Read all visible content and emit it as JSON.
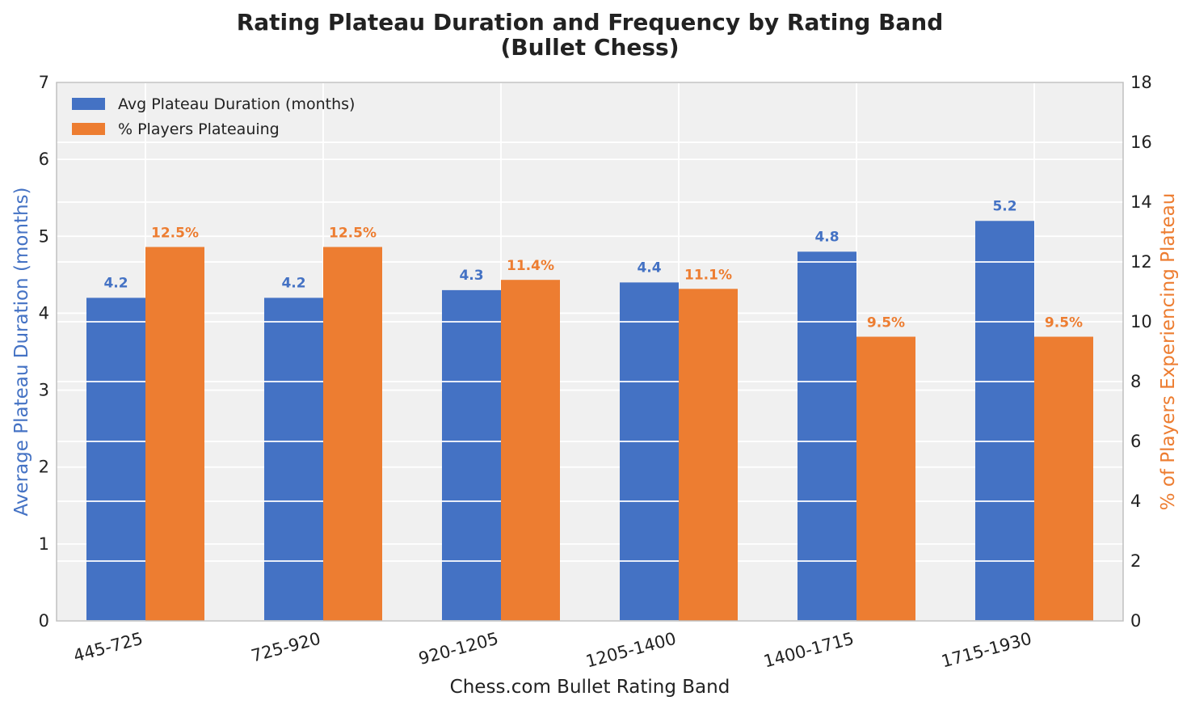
{
  "chart_data": {
    "type": "bar",
    "title_line1": "Rating Plateau Duration and Frequency by Rating Band",
    "title_line2": "(Bullet Chess)",
    "xlabel": "Chess.com Bullet Rating Band",
    "ylabel_left": "Average Plateau Duration (months)",
    "ylabel_right": "% of Players Experiencing Plateau",
    "categories": [
      "445-725",
      "725-920",
      "920-1205",
      "1205-1400",
      "1400-1715",
      "1715-1930"
    ],
    "ylim_left": [
      0,
      7
    ],
    "ylim_right": [
      0,
      18
    ],
    "yticks_left": [
      "0",
      "1",
      "2",
      "3",
      "4",
      "5",
      "6",
      "7"
    ],
    "yticks_right": [
      "0",
      "2",
      "4",
      "6",
      "8",
      "10",
      "12",
      "14",
      "16",
      "18"
    ],
    "grid": true,
    "legend_position": "top-left",
    "series": [
      {
        "name": "Avg Plateau Duration (months)",
        "axis": "left",
        "color": "#4472c4",
        "values": [
          4.2,
          4.2,
          4.3,
          4.4,
          4.8,
          5.2
        ],
        "labels": [
          "4.2",
          "4.2",
          "4.3",
          "4.4",
          "4.8",
          "5.2"
        ]
      },
      {
        "name": "% Players Plateauing",
        "axis": "right",
        "color": "#ed7d31",
        "values": [
          12.5,
          12.5,
          11.4,
          11.1,
          9.5,
          9.5
        ],
        "labels": [
          "12.5%",
          "12.5%",
          "11.4%",
          "11.1%",
          "9.5%",
          "9.5%"
        ]
      }
    ]
  }
}
